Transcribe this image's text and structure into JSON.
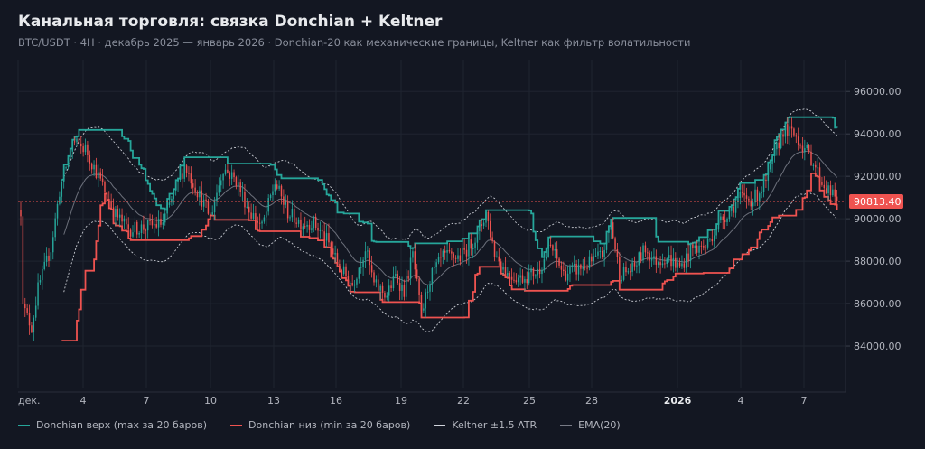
{
  "chart_data": {
    "type": "candlestick",
    "title": "Канальная торговля: связка Donchian + Keltner",
    "subtitle": "BTC/USDT · 4H · декабрь 2025 — январь 2026 · Donchian-20 как механические границы, Keltner как фильтр волатильности",
    "y_range": [
      82000,
      97500
    ],
    "y_ticks": [
      "84000.00",
      "86000.00",
      "88000.00",
      "90000.00",
      "92000.00",
      "94000.00",
      "96000.00"
    ],
    "x_ticks": [
      {
        "label": "дек.",
        "bold": false
      },
      {
        "label": "4",
        "bold": false
      },
      {
        "label": "7",
        "bold": false
      },
      {
        "label": "10",
        "bold": false
      },
      {
        "label": "13",
        "bold": false
      },
      {
        "label": "16",
        "bold": false
      },
      {
        "label": "19",
        "bold": false
      },
      {
        "label": "22",
        "bold": false
      },
      {
        "label": "25",
        "bold": false
      },
      {
        "label": "28",
        "bold": false
      },
      {
        "label": "2026",
        "bold": true
      },
      {
        "label": "4",
        "bold": false
      },
      {
        "label": "7",
        "bold": false
      }
    ],
    "last_price": 90813.4,
    "last_price_label": "90813.40",
    "path_anchors": [
      [
        0,
        90400
      ],
      [
        1,
        86300
      ],
      [
        2,
        85600
      ],
      [
        5,
        84900
      ],
      [
        8,
        86700
      ],
      [
        14,
        88600
      ],
      [
        18,
        91300
      ],
      [
        24,
        93600
      ],
      [
        30,
        93300
      ],
      [
        36,
        92000
      ],
      [
        44,
        90200
      ],
      [
        50,
        89500
      ],
      [
        58,
        89600
      ],
      [
        66,
        89800
      ],
      [
        70,
        90900
      ],
      [
        76,
        92500
      ],
      [
        82,
        91300
      ],
      [
        88,
        90100
      ],
      [
        94,
        92400
      ],
      [
        100,
        91800
      ],
      [
        106,
        90400
      ],
      [
        112,
        89600
      ],
      [
        118,
        91700
      ],
      [
        124,
        90300
      ],
      [
        130,
        89800
      ],
      [
        136,
        89800
      ],
      [
        142,
        89000
      ],
      [
        148,
        87700
      ],
      [
        154,
        86900
      ],
      [
        160,
        88600
      ],
      [
        164,
        86900
      ],
      [
        170,
        86400
      ],
      [
        174,
        87300
      ],
      [
        178,
        86600
      ],
      [
        182,
        88300
      ],
      [
        186,
        85400
      ],
      [
        190,
        87200
      ],
      [
        196,
        88200
      ],
      [
        204,
        88200
      ],
      [
        212,
        89200
      ],
      [
        216,
        90300
      ],
      [
        220,
        88400
      ],
      [
        226,
        87400
      ],
      [
        232,
        87200
      ],
      [
        240,
        87500
      ],
      [
        246,
        88700
      ],
      [
        252,
        87400
      ],
      [
        258,
        87600
      ],
      [
        264,
        87900
      ],
      [
        270,
        88300
      ],
      [
        274,
        89800
      ],
      [
        278,
        87400
      ],
      [
        284,
        87600
      ],
      [
        290,
        88600
      ],
      [
        294,
        88000
      ],
      [
        300,
        88200
      ],
      [
        306,
        87700
      ],
      [
        312,
        88600
      ],
      [
        318,
        88700
      ],
      [
        324,
        89800
      ],
      [
        330,
        90500
      ],
      [
        334,
        91000
      ],
      [
        340,
        90900
      ],
      [
        346,
        91700
      ],
      [
        350,
        93000
      ],
      [
        354,
        94200
      ],
      [
        360,
        93900
      ],
      [
        364,
        93300
      ],
      [
        368,
        92700
      ],
      [
        372,
        91700
      ],
      [
        376,
        91200
      ],
      [
        379,
        90813
      ]
    ],
    "legend": [
      {
        "name": "Donchian верх (max за 20 баров)",
        "color": "#26a69a"
      },
      {
        "name": "Donchian низ (min за 20 баров)",
        "color": "#ef5350"
      },
      {
        "name": "Keltner ±1.5 ATR",
        "color": "#d1d4dc"
      },
      {
        "name": "EMA(20)",
        "color": "#787b86"
      }
    ],
    "colors": {
      "up": "#26a69a",
      "down": "#ef5350",
      "donchian_upper": "#26a69a",
      "donchian_lower": "#ef5350",
      "keltner": "#c8cbd2",
      "ema": "#6c707b",
      "grid": "#1f2430",
      "price_line": "#ef5350"
    }
  }
}
